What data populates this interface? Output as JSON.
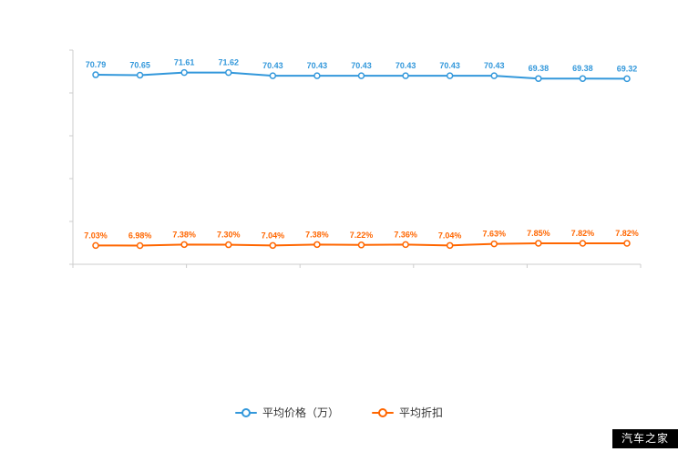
{
  "chart_data": {
    "type": "line",
    "title": "",
    "xlabel": "",
    "ylabel": "",
    "ylim": [
      0,
      80
    ],
    "grid": false,
    "legend_position": "bottom",
    "axis_color": "#cccccc",
    "series": [
      {
        "name": "平均价格（万）",
        "color": "#3398db",
        "point_fill": "#ffffff",
        "values": [
          70.79,
          70.65,
          71.61,
          71.62,
          70.43,
          70.43,
          70.43,
          70.43,
          70.43,
          70.43,
          69.38,
          69.38,
          69.32
        ],
        "labels": [
          "70.79",
          "70.65",
          "71.61",
          "71.62",
          "70.43",
          "70.43",
          "70.43",
          "70.43",
          "70.43",
          "70.43",
          "69.38",
          "69.38",
          "69.32"
        ]
      },
      {
        "name": "平均折扣",
        "color": "#ff6600",
        "point_fill": "#ffffff",
        "values": [
          7.03,
          6.98,
          7.38,
          7.3,
          7.04,
          7.38,
          7.22,
          7.36,
          7.04,
          7.63,
          7.85,
          7.82,
          7.82
        ],
        "labels": [
          "7.03%",
          "6.98%",
          "7.38%",
          "7.30%",
          "7.04%",
          "7.38%",
          "7.22%",
          "7.36%",
          "7.04%",
          "7.63%",
          "7.85%",
          "7.82%",
          "7.82%"
        ]
      }
    ]
  },
  "watermark": "汽车之家"
}
